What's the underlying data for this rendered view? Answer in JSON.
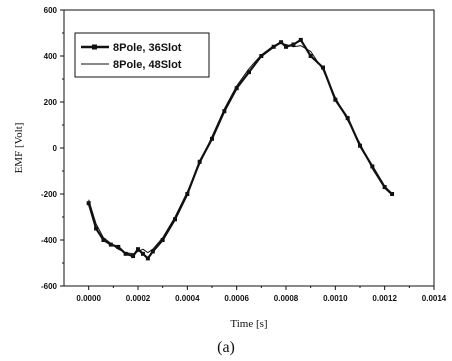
{
  "chart_data": {
    "type": "line",
    "xlabel": "Time [s]",
    "ylabel": "EMF [Volt]",
    "caption": "(a)",
    "xlim": [
      -0.0001,
      0.0014
    ],
    "ylim": [
      -600,
      600
    ],
    "x_ticks": [
      0.0,
      0.0002,
      0.0004,
      0.0006,
      0.0008,
      0.001,
      0.0012,
      0.0014
    ],
    "x_tick_labels": [
      "0.0000",
      "0.0002",
      "0.0004",
      "0.0006",
      "0.0008",
      "0.0010",
      "0.0012",
      "0.0014"
    ],
    "y_ticks": [
      -600,
      -400,
      -200,
      0,
      200,
      400,
      600
    ],
    "y_tick_labels": [
      "-600",
      "-400",
      "-200",
      "0",
      "200",
      "400",
      "600"
    ],
    "legend_position": "top-left",
    "series": [
      {
        "name": "8Pole, 36Slot",
        "style": "line-square-markers",
        "color": "#111111",
        "x": [
          0.0,
          3e-05,
          6e-05,
          9e-05,
          0.00012,
          0.00015,
          0.00018,
          0.0002,
          0.00022,
          0.00024,
          0.00026,
          0.0003,
          0.00035,
          0.0004,
          0.00045,
          0.0005,
          0.00055,
          0.0006,
          0.00065,
          0.0007,
          0.00075,
          0.00078,
          0.0008,
          0.00083,
          0.00086,
          0.0009,
          0.00095,
          0.001,
          0.00105,
          0.0011,
          0.00115,
          0.0012,
          0.00123
        ],
        "y": [
          -240,
          -350,
          -400,
          -420,
          -430,
          -460,
          -470,
          -440,
          -460,
          -480,
          -450,
          -400,
          -310,
          -200,
          -60,
          40,
          160,
          260,
          330,
          400,
          440,
          460,
          440,
          450,
          470,
          400,
          350,
          210,
          130,
          10,
          -80,
          -170,
          -200
        ]
      },
      {
        "name": "8Pole, 48Slot",
        "style": "thin-line",
        "color": "#111111",
        "x": [
          0.0,
          3e-05,
          6e-05,
          9e-05,
          0.00012,
          0.00015,
          0.00018,
          0.0002,
          0.00022,
          0.00024,
          0.00026,
          0.0003,
          0.00035,
          0.0004,
          0.00045,
          0.0005,
          0.00055,
          0.0006,
          0.00065,
          0.0007,
          0.00075,
          0.00078,
          0.0008,
          0.00083,
          0.00086,
          0.0009,
          0.00095,
          0.001,
          0.00105,
          0.0011,
          0.00115,
          0.0012,
          0.00123
        ],
        "y": [
          -225,
          -330,
          -390,
          -415,
          -440,
          -455,
          -460,
          -450,
          -440,
          -455,
          -440,
          -390,
          -300,
          -190,
          -70,
          50,
          170,
          270,
          345,
          405,
          445,
          455,
          450,
          440,
          445,
          420,
          340,
          220,
          120,
          20,
          -90,
          -175,
          -205
        ]
      }
    ]
  }
}
